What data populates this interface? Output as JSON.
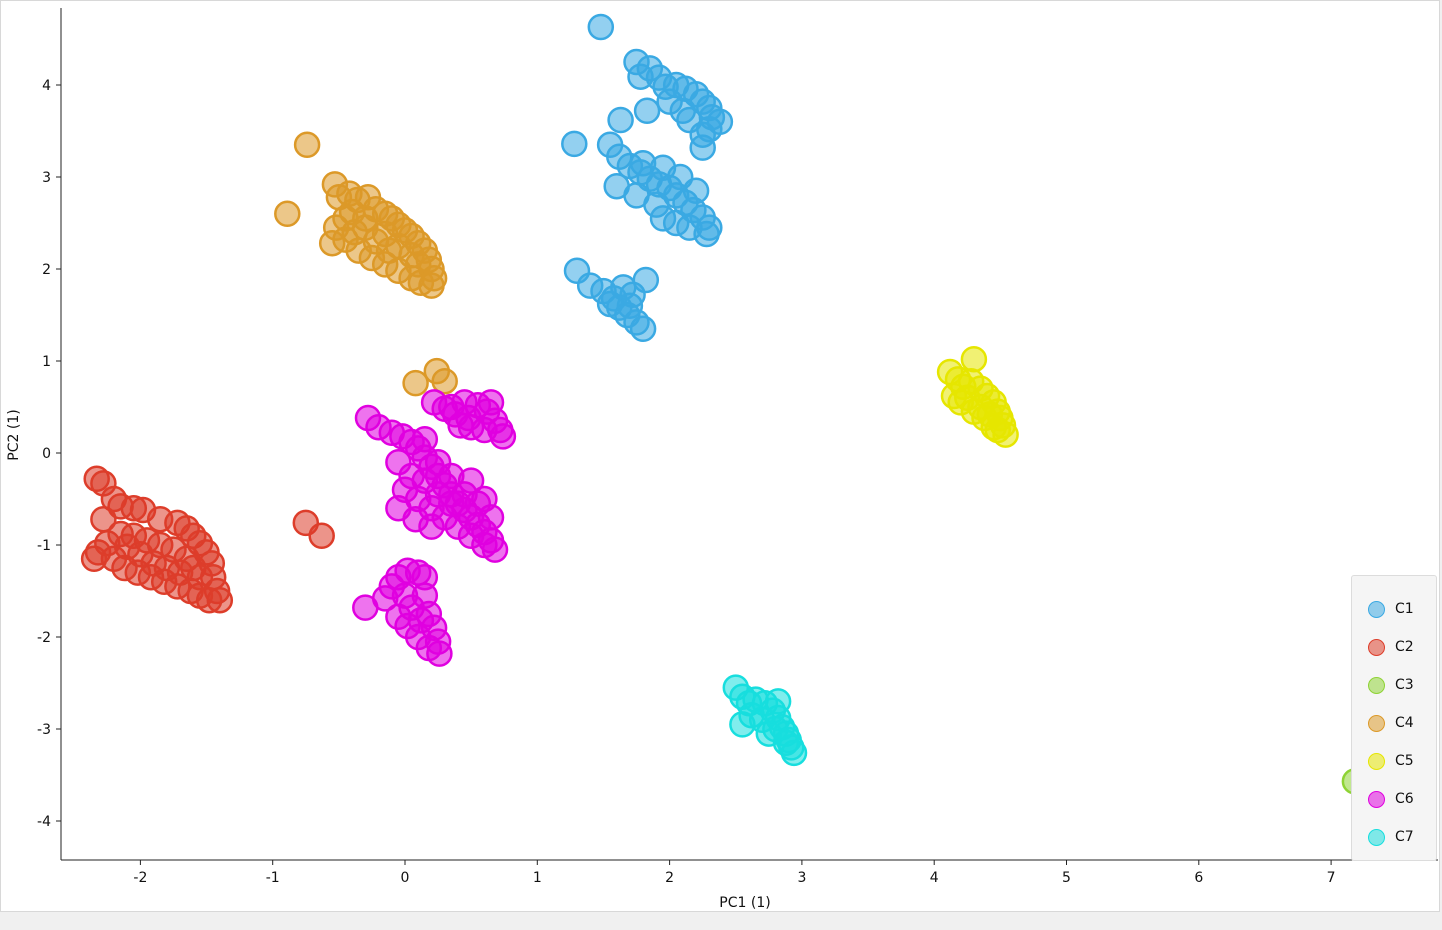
{
  "chart_data": {
    "type": "scatter",
    "xlabel": "PC1 (1)",
    "ylabel": "PC2 (1)",
    "xlim": [
      -2.6,
      7.9
    ],
    "ylim": [
      -4.45,
      4.85
    ],
    "xticks": [
      -2,
      -1,
      0,
      1,
      2,
      3,
      4,
      5,
      6,
      7
    ],
    "yticks": [
      -4,
      -3,
      -2,
      -1,
      0,
      1,
      2,
      3,
      4
    ],
    "legend_position": "right, lower",
    "series": [
      {
        "name": "C1",
        "color": "#3aa9e3",
        "points": [
          [
            1.48,
            4.63
          ],
          [
            1.75,
            4.25
          ],
          [
            1.78,
            4.09
          ],
          [
            1.85,
            4.18
          ],
          [
            1.92,
            4.08
          ],
          [
            1.97,
            3.98
          ],
          [
            2.05,
            4.0
          ],
          [
            2.12,
            3.96
          ],
          [
            2.2,
            3.9
          ],
          [
            2.25,
            3.82
          ],
          [
            2.3,
            3.75
          ],
          [
            2.32,
            3.65
          ],
          [
            2.38,
            3.6
          ],
          [
            2.3,
            3.52
          ],
          [
            2.25,
            3.46
          ],
          [
            2.1,
            3.72
          ],
          [
            2.0,
            3.82
          ],
          [
            2.15,
            3.62
          ],
          [
            2.25,
            3.32
          ],
          [
            1.83,
            3.72
          ],
          [
            1.63,
            3.62
          ],
          [
            1.28,
            3.36
          ],
          [
            1.55,
            3.35
          ],
          [
            1.62,
            3.22
          ],
          [
            1.7,
            3.12
          ],
          [
            1.78,
            3.05
          ],
          [
            1.85,
            2.98
          ],
          [
            1.92,
            2.92
          ],
          [
            2.0,
            2.88
          ],
          [
            2.05,
            2.8
          ],
          [
            2.12,
            2.72
          ],
          [
            2.18,
            2.64
          ],
          [
            2.25,
            2.56
          ],
          [
            2.3,
            2.45
          ],
          [
            2.28,
            2.38
          ],
          [
            1.6,
            2.9
          ],
          [
            1.75,
            2.8
          ],
          [
            1.9,
            2.7
          ],
          [
            1.95,
            2.55
          ],
          [
            2.05,
            2.5
          ],
          [
            2.15,
            2.45
          ],
          [
            1.95,
            3.1
          ],
          [
            2.08,
            3.0
          ],
          [
            2.2,
            2.85
          ],
          [
            1.8,
            3.15
          ],
          [
            1.3,
            1.98
          ],
          [
            1.4,
            1.82
          ],
          [
            1.5,
            1.76
          ],
          [
            1.58,
            1.68
          ],
          [
            1.62,
            1.58
          ],
          [
            1.68,
            1.5
          ],
          [
            1.75,
            1.42
          ],
          [
            1.8,
            1.35
          ],
          [
            1.82,
            1.88
          ],
          [
            1.72,
            1.72
          ],
          [
            1.65,
            1.8
          ],
          [
            1.55,
            1.62
          ],
          [
            1.7,
            1.6
          ]
        ]
      },
      {
        "name": "C2",
        "color": "#dd3d2a",
        "points": [
          [
            -2.33,
            -0.28
          ],
          [
            -2.28,
            -0.33
          ],
          [
            -2.2,
            -0.5
          ],
          [
            -2.15,
            -0.58
          ],
          [
            -2.05,
            -0.6
          ],
          [
            -1.98,
            -0.62
          ],
          [
            -1.85,
            -0.72
          ],
          [
            -1.72,
            -0.76
          ],
          [
            -1.65,
            -0.82
          ],
          [
            -1.6,
            -0.9
          ],
          [
            -1.55,
            -0.98
          ],
          [
            -1.5,
            -1.08
          ],
          [
            -1.46,
            -1.2
          ],
          [
            -1.45,
            -1.35
          ],
          [
            -1.42,
            -1.5
          ],
          [
            -1.4,
            -1.6
          ],
          [
            -1.48,
            -1.6
          ],
          [
            -1.55,
            -1.55
          ],
          [
            -1.62,
            -1.5
          ],
          [
            -1.72,
            -1.45
          ],
          [
            -1.82,
            -1.4
          ],
          [
            -1.92,
            -1.35
          ],
          [
            -2.02,
            -1.3
          ],
          [
            -2.12,
            -1.25
          ],
          [
            -2.2,
            -1.15
          ],
          [
            -2.32,
            -1.08
          ],
          [
            -2.35,
            -1.15
          ],
          [
            -2.25,
            -0.98
          ],
          [
            -2.15,
            -0.88
          ],
          [
            -2.05,
            -0.9
          ],
          [
            -1.95,
            -0.95
          ],
          [
            -1.85,
            -1.0
          ],
          [
            -1.75,
            -1.05
          ],
          [
            -1.65,
            -1.15
          ],
          [
            -1.6,
            -1.25
          ],
          [
            -1.55,
            -1.35
          ],
          [
            -2.0,
            -1.1
          ],
          [
            -1.9,
            -1.2
          ],
          [
            -1.8,
            -1.25
          ],
          [
            -1.7,
            -1.3
          ],
          [
            -2.1,
            -1.02
          ],
          [
            -2.28,
            -0.72
          ],
          [
            -0.75,
            -0.76
          ],
          [
            -0.63,
            -0.9
          ]
        ]
      },
      {
        "name": "C3",
        "color": "#8ed334",
        "points": [
          [
            7.18,
            -3.57
          ],
          [
            7.25,
            -3.58
          ],
          [
            7.32,
            -3.66
          ],
          [
            7.38,
            -3.72
          ],
          [
            7.42,
            -3.8
          ],
          [
            7.45,
            -3.88
          ],
          [
            7.5,
            -3.95
          ],
          [
            7.52,
            -4.02
          ],
          [
            7.55,
            -4.08
          ],
          [
            7.58,
            -4.14
          ],
          [
            7.6,
            -4.2
          ],
          [
            7.48,
            -4.05
          ],
          [
            7.4,
            -3.95
          ],
          [
            7.35,
            -3.85
          ],
          [
            7.45,
            -4.12
          ]
        ]
      },
      {
        "name": "C4",
        "color": "#dc9928",
        "points": [
          [
            -0.74,
            3.35
          ],
          [
            -0.89,
            2.6
          ],
          [
            -0.53,
            2.92
          ],
          [
            -0.5,
            2.78
          ],
          [
            -0.42,
            2.82
          ],
          [
            -0.36,
            2.75
          ],
          [
            -0.28,
            2.78
          ],
          [
            -0.22,
            2.65
          ],
          [
            -0.15,
            2.6
          ],
          [
            -0.1,
            2.55
          ],
          [
            -0.05,
            2.48
          ],
          [
            0.0,
            2.42
          ],
          [
            0.05,
            2.36
          ],
          [
            0.1,
            2.28
          ],
          [
            0.15,
            2.2
          ],
          [
            0.18,
            2.1
          ],
          [
            0.2,
            2.0
          ],
          [
            0.22,
            1.9
          ],
          [
            0.2,
            1.82
          ],
          [
            0.12,
            1.85
          ],
          [
            0.05,
            1.9
          ],
          [
            -0.05,
            1.98
          ],
          [
            -0.15,
            2.05
          ],
          [
            -0.25,
            2.12
          ],
          [
            -0.35,
            2.2
          ],
          [
            -0.45,
            2.32
          ],
          [
            -0.55,
            2.28
          ],
          [
            -0.52,
            2.45
          ],
          [
            -0.45,
            2.55
          ],
          [
            -0.38,
            2.4
          ],
          [
            -0.3,
            2.45
          ],
          [
            -0.22,
            2.3
          ],
          [
            -0.15,
            2.38
          ],
          [
            -0.05,
            2.25
          ],
          [
            0.05,
            2.15
          ],
          [
            0.1,
            2.05
          ],
          [
            -0.4,
            2.62
          ],
          [
            -0.3,
            2.55
          ],
          [
            -0.12,
            2.2
          ],
          [
            0.08,
            0.76
          ],
          [
            0.24,
            0.89
          ],
          [
            0.3,
            0.78
          ]
        ]
      },
      {
        "name": "C5",
        "color": "#e6e600",
        "points": [
          [
            4.3,
            1.02
          ],
          [
            4.12,
            0.88
          ],
          [
            4.18,
            0.8
          ],
          [
            4.22,
            0.72
          ],
          [
            4.28,
            0.78
          ],
          [
            4.35,
            0.7
          ],
          [
            4.4,
            0.62
          ],
          [
            4.45,
            0.55
          ],
          [
            4.48,
            0.45
          ],
          [
            4.5,
            0.38
          ],
          [
            4.52,
            0.3
          ],
          [
            4.54,
            0.2
          ],
          [
            4.45,
            0.28
          ],
          [
            4.38,
            0.38
          ],
          [
            4.3,
            0.45
          ],
          [
            4.2,
            0.55
          ],
          [
            4.15,
            0.62
          ],
          [
            4.25,
            0.6
          ],
          [
            4.35,
            0.5
          ],
          [
            4.42,
            0.42
          ],
          [
            4.48,
            0.25
          ]
        ]
      },
      {
        "name": "C6",
        "color": "#e000e0",
        "points": [
          [
            -0.28,
            0.38
          ],
          [
            -0.2,
            0.28
          ],
          [
            -0.1,
            0.22
          ],
          [
            -0.02,
            0.18
          ],
          [
            0.05,
            0.12
          ],
          [
            0.1,
            0.05
          ],
          [
            0.15,
            -0.05
          ],
          [
            0.2,
            -0.15
          ],
          [
            0.25,
            -0.25
          ],
          [
            0.3,
            -0.35
          ],
          [
            0.35,
            -0.45
          ],
          [
            0.4,
            -0.55
          ],
          [
            0.45,
            -0.62
          ],
          [
            0.5,
            -0.7
          ],
          [
            0.55,
            -0.78
          ],
          [
            0.6,
            -0.86
          ],
          [
            0.65,
            -0.95
          ],
          [
            0.68,
            -1.05
          ],
          [
            0.6,
            -1.0
          ],
          [
            0.5,
            -0.9
          ],
          [
            0.4,
            -0.8
          ],
          [
            0.3,
            -0.7
          ],
          [
            0.2,
            -0.6
          ],
          [
            0.1,
            -0.5
          ],
          [
            0.0,
            -0.4
          ],
          [
            0.05,
            -0.25
          ],
          [
            0.15,
            -0.3
          ],
          [
            0.25,
            -0.45
          ],
          [
            0.35,
            -0.55
          ],
          [
            0.45,
            -0.45
          ],
          [
            0.55,
            -0.55
          ],
          [
            0.5,
            -0.3
          ],
          [
            0.6,
            -0.5
          ],
          [
            0.65,
            -0.7
          ],
          [
            0.35,
            -0.25
          ],
          [
            0.25,
            -0.1
          ],
          [
            0.15,
            0.15
          ],
          [
            -0.05,
            -0.1
          ],
          [
            -0.05,
            -0.6
          ],
          [
            0.08,
            -0.72
          ],
          [
            0.2,
            -0.8
          ],
          [
            0.22,
            0.55
          ],
          [
            0.3,
            0.48
          ],
          [
            0.38,
            0.42
          ],
          [
            0.48,
            0.38
          ],
          [
            0.55,
            0.52
          ],
          [
            0.62,
            0.45
          ],
          [
            0.68,
            0.35
          ],
          [
            0.72,
            0.25
          ],
          [
            0.74,
            0.18
          ],
          [
            0.6,
            0.25
          ],
          [
            0.5,
            0.28
          ],
          [
            0.42,
            0.3
          ],
          [
            0.35,
            0.5
          ],
          [
            0.65,
            0.55
          ],
          [
            0.45,
            0.55
          ],
          [
            -0.3,
            -1.68
          ],
          [
            -0.15,
            -1.58
          ],
          [
            -0.1,
            -1.45
          ],
          [
            -0.05,
            -1.35
          ],
          [
            0.02,
            -1.28
          ],
          [
            0.1,
            -1.3
          ],
          [
            0.15,
            -1.55
          ],
          [
            0.18,
            -1.75
          ],
          [
            0.22,
            -1.9
          ],
          [
            0.25,
            -2.05
          ],
          [
            0.26,
            -2.18
          ],
          [
            0.18,
            -2.12
          ],
          [
            0.1,
            -2.0
          ],
          [
            0.02,
            -1.88
          ],
          [
            -0.05,
            -1.78
          ],
          [
            0.05,
            -1.68
          ],
          [
            0.12,
            -1.82
          ],
          [
            0.0,
            -1.55
          ],
          [
            0.15,
            -1.35
          ]
        ]
      },
      {
        "name": "C7",
        "color": "#17dede",
        "points": [
          [
            2.5,
            -2.55
          ],
          [
            2.55,
            -2.65
          ],
          [
            2.6,
            -2.72
          ],
          [
            2.65,
            -2.68
          ],
          [
            2.72,
            -2.72
          ],
          [
            2.78,
            -2.8
          ],
          [
            2.82,
            -2.88
          ],
          [
            2.85,
            -2.98
          ],
          [
            2.88,
            -3.05
          ],
          [
            2.9,
            -3.12
          ],
          [
            2.92,
            -3.2
          ],
          [
            2.94,
            -3.26
          ],
          [
            2.8,
            -3.0
          ],
          [
            2.7,
            -2.9
          ],
          [
            2.62,
            -2.85
          ],
          [
            2.55,
            -2.95
          ],
          [
            2.82,
            -2.7
          ],
          [
            2.75,
            -3.05
          ],
          [
            2.88,
            -3.15
          ]
        ]
      }
    ]
  }
}
